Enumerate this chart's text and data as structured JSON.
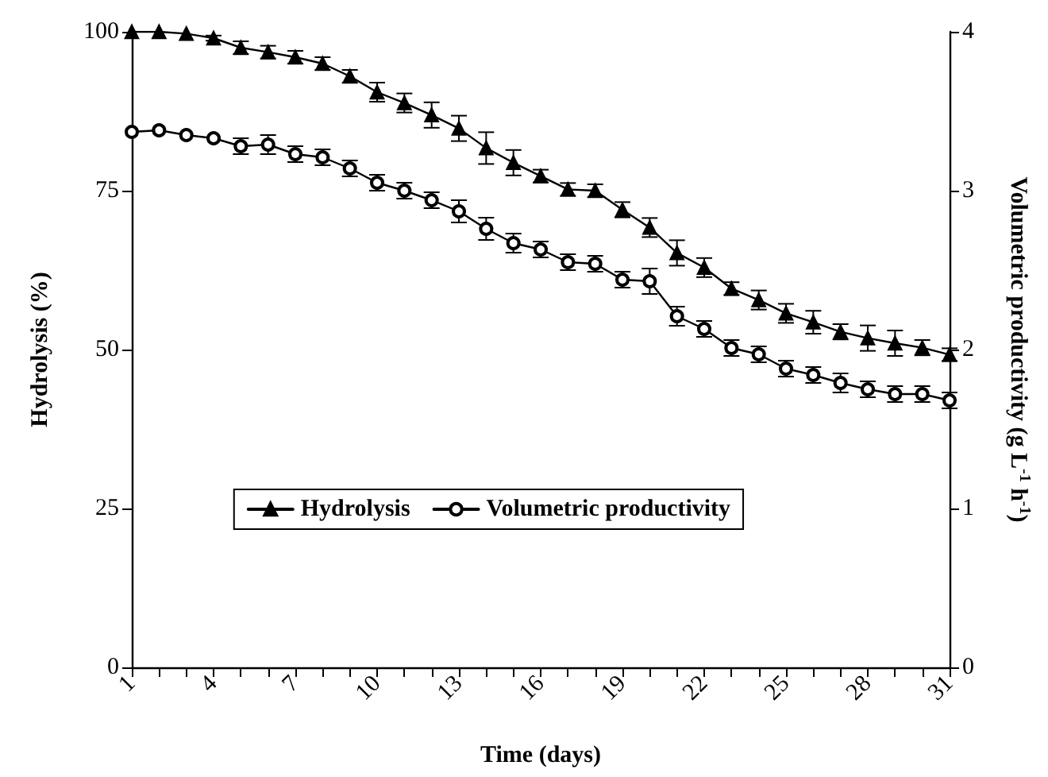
{
  "chart_data": {
    "type": "line",
    "xlabel": "Time (days)",
    "ylabel": "Hydrolysis (%)",
    "y2label": "Volumetric productivity (g L$^{-1}$ h$^{-1}$)",
    "x": [
      1,
      2,
      3,
      4,
      5,
      6,
      7,
      8,
      9,
      10,
      11,
      12,
      13,
      14,
      15,
      16,
      17,
      18,
      19,
      20,
      21,
      22,
      23,
      24,
      25,
      26,
      27,
      28,
      29,
      30,
      31
    ],
    "xlim": [
      1,
      31
    ],
    "xticks": [
      1,
      {
        "value": 2,
        "label": null
      },
      {
        "value": 3,
        "label": null
      },
      4,
      {
        "value": 5,
        "label": null
      },
      {
        "value": 6,
        "label": null
      },
      7,
      {
        "value": 8,
        "label": null
      },
      {
        "value": 9,
        "label": null
      },
      10,
      {
        "value": 11,
        "label": null
      },
      {
        "value": 12,
        "label": null
      },
      13,
      {
        "value": 14,
        "label": null
      },
      {
        "value": 15,
        "label": null
      },
      16,
      {
        "value": 17,
        "label": null
      },
      {
        "value": 18,
        "label": null
      },
      19,
      {
        "value": 20,
        "label": null
      },
      {
        "value": 21,
        "label": null
      },
      22,
      {
        "value": 23,
        "label": null
      },
      {
        "value": 24,
        "label": null
      },
      25,
      {
        "value": 26,
        "label": null
      },
      {
        "value": 27,
        "label": null
      },
      28,
      {
        "value": 29,
        "label": null
      },
      {
        "value": 30,
        "label": null
      },
      31
    ],
    "ylim": [
      0,
      100
    ],
    "yticks": [
      0,
      25,
      50,
      75,
      100
    ],
    "y2lim": [
      0,
      4
    ],
    "y2ticks": [
      0,
      1,
      2,
      3,
      4
    ],
    "grid": false,
    "legend": "bottom",
    "line_style": "solid",
    "series": [
      {
        "name": "Hydrolysis",
        "color": "#000000",
        "marker": "triangle",
        "values": [
          100,
          100,
          99.7,
          99,
          97.5,
          96.8,
          96,
          95,
          93,
          90.5,
          88.8,
          86.9,
          84.8,
          81.7,
          79.4,
          77.3,
          75.2,
          75,
          72,
          69.2,
          65.2,
          62.9,
          59.6,
          57.8,
          55.7,
          54.3,
          52.8,
          51.8,
          51,
          50.3,
          49.2
        ],
        "errors": [
          null,
          null,
          null,
          0.4,
          1,
          1,
          1,
          1,
          1,
          1.5,
          1.5,
          2,
          2,
          2.5,
          2,
          1,
          1,
          1,
          1.2,
          1.5,
          2,
          1.5,
          1,
          1.5,
          1.5,
          1.8,
          1.2,
          2,
          2,
          1.2,
          1
        ]
      },
      {
        "name": "Volumetric productivity",
        "color": "#000000",
        "marker": "circle",
        "axis": "y2",
        "values": [
          3.37,
          3.38,
          3.35,
          3.33,
          3.28,
          3.29,
          3.23,
          3.21,
          3.14,
          3.05,
          3.0,
          2.94,
          2.87,
          2.76,
          2.67,
          2.63,
          2.55,
          2.54,
          2.44,
          2.43,
          2.21,
          2.13,
          2.01,
          1.97,
          1.88,
          1.84,
          1.79,
          1.75,
          1.72,
          1.72,
          1.68
        ],
        "errors": [
          null,
          null,
          null,
          null,
          0.05,
          0.06,
          0.05,
          0.05,
          0.05,
          0.05,
          0.05,
          0.05,
          0.07,
          0.07,
          0.06,
          0.05,
          0.05,
          0.05,
          0.05,
          0.08,
          0.06,
          0.05,
          0.05,
          0.05,
          0.05,
          0.05,
          0.06,
          0.05,
          0.05,
          0.05,
          0.05
        ]
      }
    ]
  }
}
